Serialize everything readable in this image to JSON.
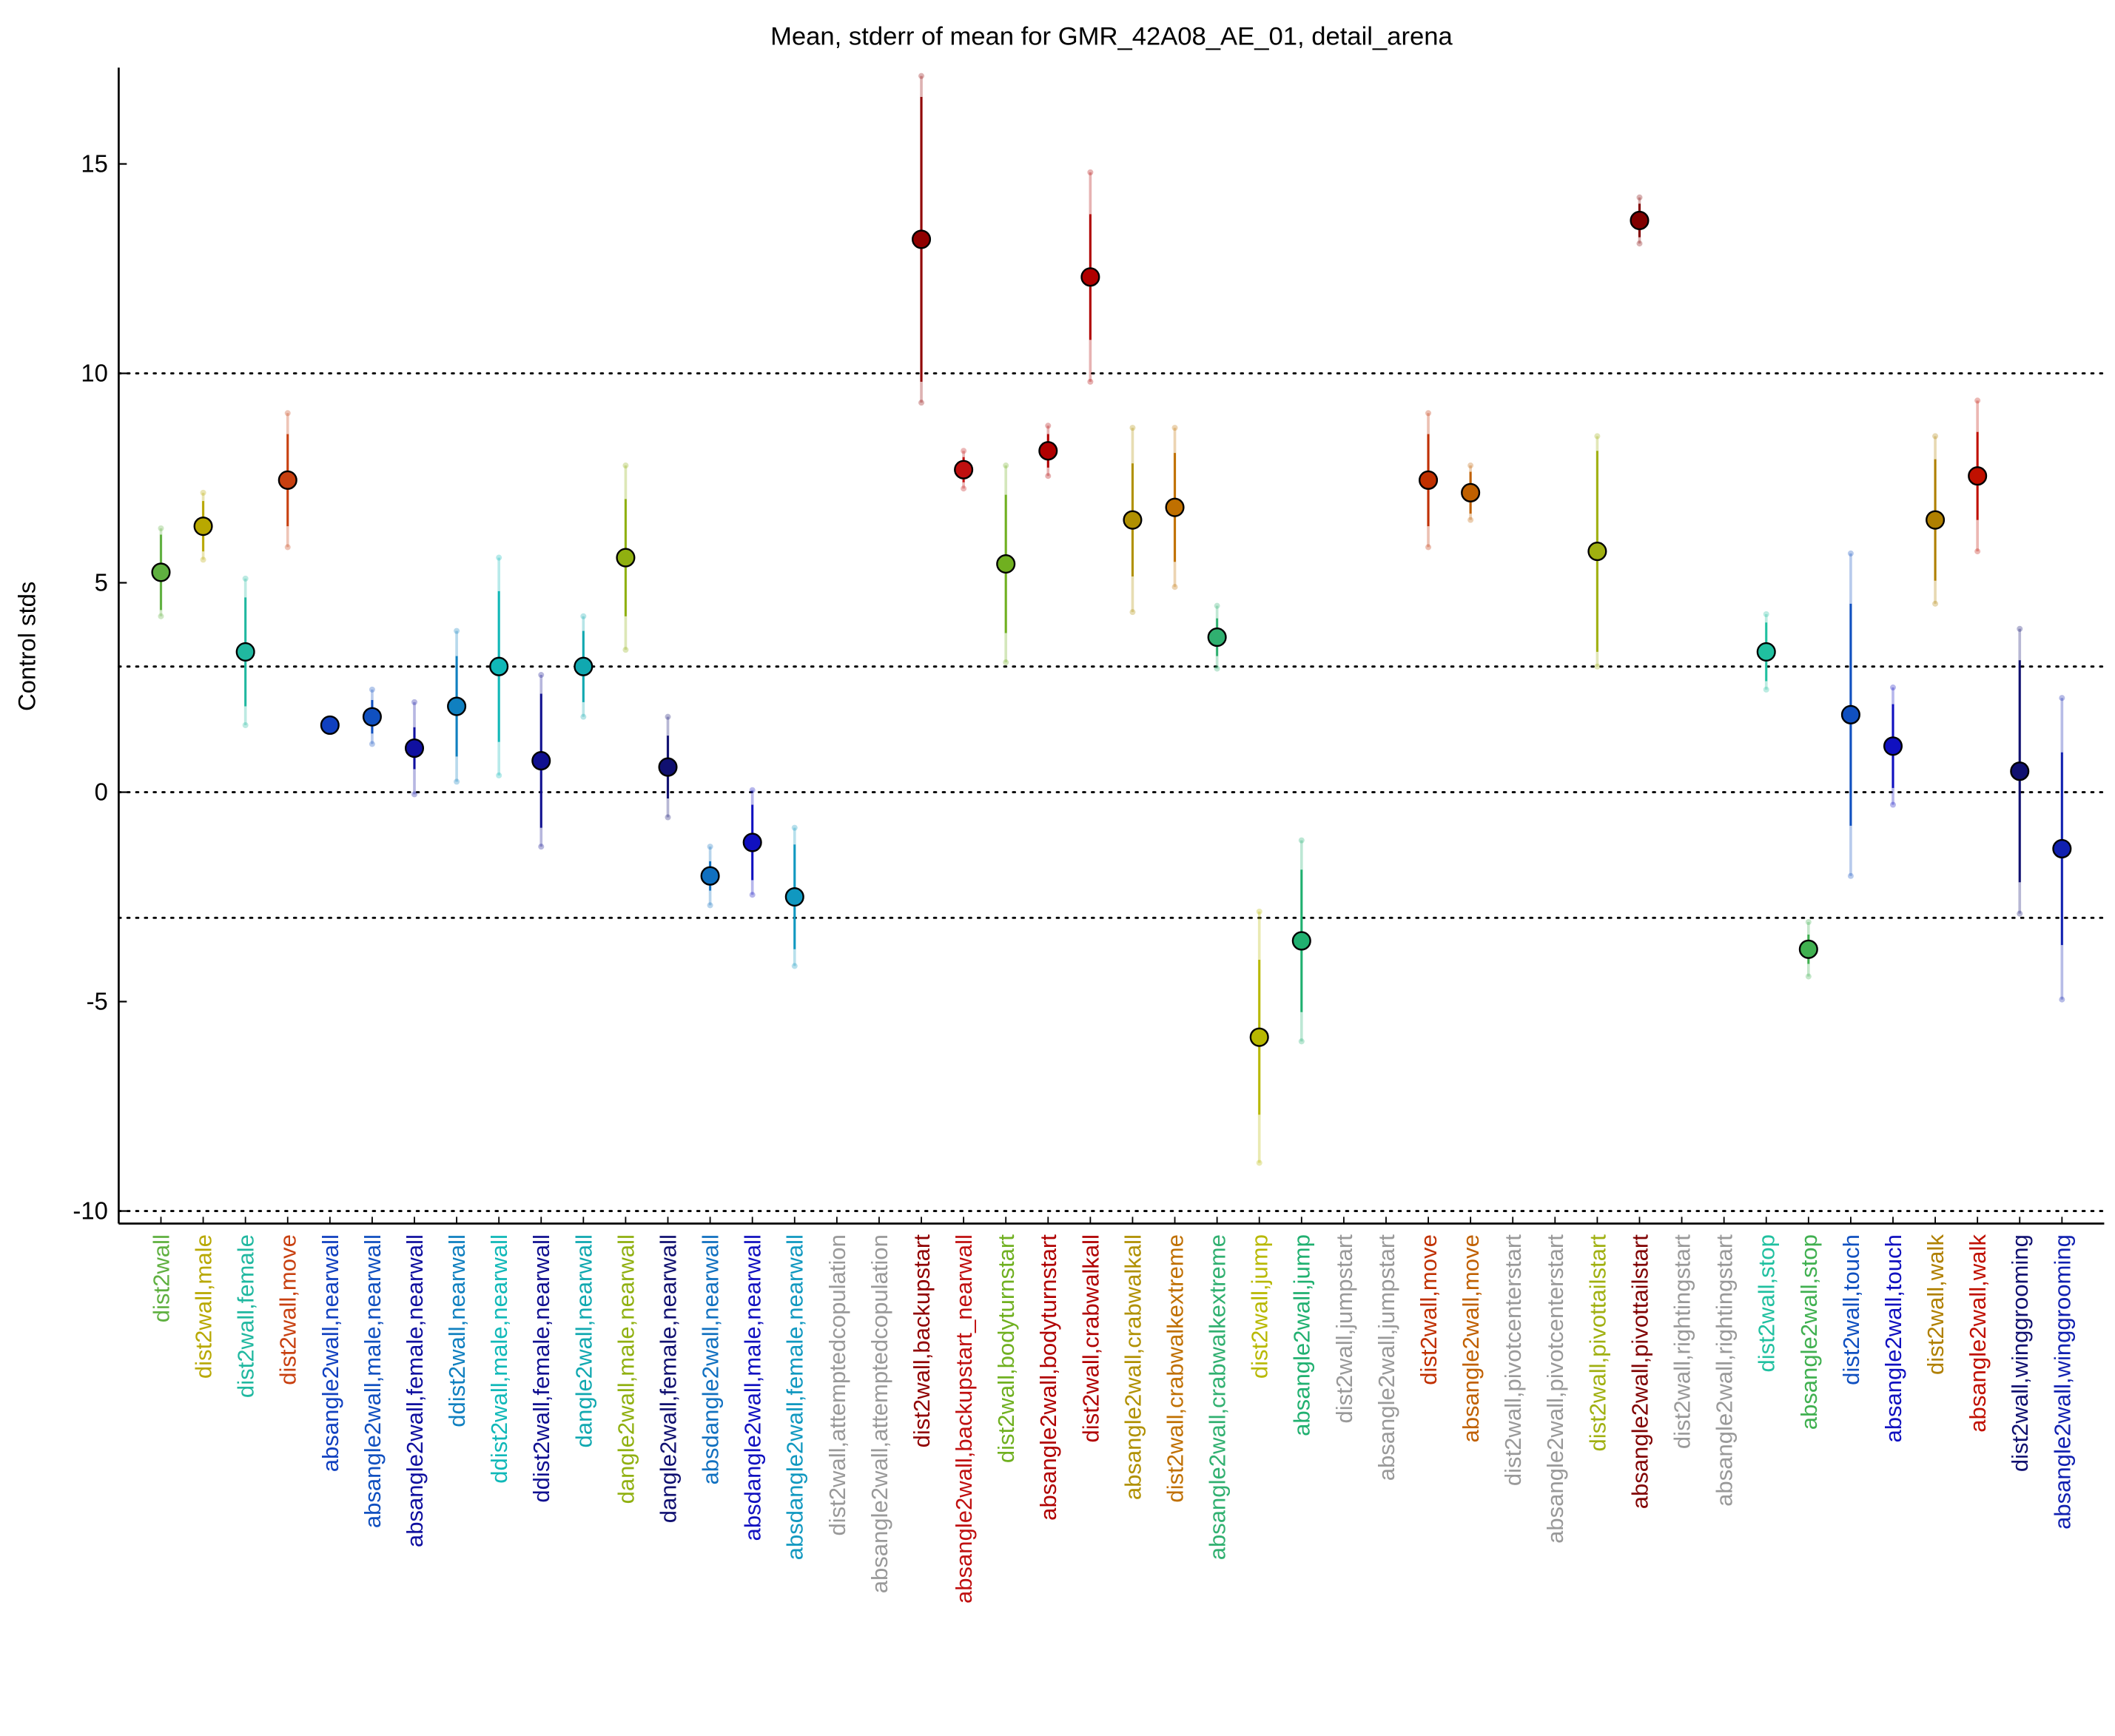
{
  "chart_data": {
    "type": "errorbar",
    "title": "Mean, stderr of mean for GMR_42A08_AE_01, detail_arena",
    "y_label": "Control stds",
    "categories": [
      "dist2wall",
      "dist2wall,male",
      "dist2wall,female",
      "dist2wall,move",
      "absangle2wall,nearwall",
      "absangle2wall,male,nearwall",
      "absangle2wall,female,nearwall",
      "ddist2wall,nearwall",
      "ddist2wall,male,nearwall",
      "ddist2wall,female,nearwall",
      "dangle2wall,nearwall",
      "dangle2wall,male,nearwall",
      "dangle2wall,female,nearwall",
      "absdangle2wall,nearwall",
      "absdangle2wall,male,nearwall",
      "absdangle2wall,female,nearwall",
      "dist2wall,attemptedcopulation",
      "absangle2wall,attemptedcopulation",
      "dist2wall,backupstart",
      "absangle2wall,backupstart_nearwall",
      "dist2wall,bodyturnstart",
      "absangle2wall,bodyturnstart",
      "dist2wall,crabwalkall",
      "absangle2wall,crabwalkall",
      "dist2wall,crabwalkextreme",
      "absangle2wall,crabwalkextreme",
      "dist2wall,jump",
      "absangle2wall,jump",
      "dist2wall,jumpstart",
      "absangle2wall,jumpstart",
      "dist2wall,move",
      "absangle2wall,move",
      "dist2wall,pivotcenterstart",
      "absangle2wall,pivotcenterstart",
      "dist2wall,pivottailstart",
      "absangle2wall,pivottailstart",
      "dist2wall,rightingstart",
      "absangle2wall,rightingstart",
      "dist2wall,stop",
      "absangle2wall,stop",
      "dist2wall,touch",
      "absangle2wall,touch",
      "dist2wall,walk",
      "absangle2wall,walk",
      "dist2wall,winggrooming",
      "absangle2wall,winggrooming"
    ],
    "values": [
      5.25,
      6.35,
      3.35,
      7.45,
      1.6,
      1.8,
      1.05,
      2.05,
      3.0,
      0.75,
      3.0,
      5.6,
      0.6,
      -2.0,
      -1.2,
      -2.5,
      null,
      null,
      13.2,
      7.7,
      5.45,
      8.15,
      12.3,
      6.5,
      6.8,
      3.7,
      -5.85,
      -3.55,
      null,
      null,
      7.45,
      7.15,
      null,
      null,
      5.75,
      13.65,
      null,
      null,
      3.35,
      -3.75,
      1.85,
      1.1,
      6.5,
      7.55,
      0.5,
      -1.35
    ],
    "error": [
      0.9,
      0.6,
      1.3,
      1.1,
      0.1,
      0.4,
      0.5,
      1.2,
      1.8,
      1.6,
      0.85,
      1.4,
      0.75,
      0.35,
      0.9,
      1.25,
      null,
      null,
      3.4,
      0.3,
      1.65,
      0.4,
      1.5,
      1.35,
      1.3,
      0.45,
      1.85,
      1.7,
      null,
      null,
      1.1,
      0.5,
      null,
      null,
      2.4,
      0.4,
      null,
      null,
      0.7,
      0.35,
      2.65,
      1.0,
      1.45,
      1.05,
      2.65,
      2.3
    ],
    "spread": [
      1.05,
      0.8,
      1.75,
      1.6,
      0.1,
      0.65,
      1.1,
      1.8,
      2.6,
      2.05,
      1.2,
      2.2,
      1.2,
      0.7,
      1.25,
      1.65,
      null,
      null,
      3.9,
      0.45,
      2.35,
      0.6,
      2.5,
      2.2,
      1.9,
      0.75,
      3.0,
      2.4,
      null,
      null,
      1.6,
      0.65,
      null,
      null,
      2.75,
      0.55,
      null,
      null,
      0.9,
      0.65,
      3.85,
      1.4,
      2.0,
      1.8,
      3.4,
      3.6
    ],
    "colors": [
      "#5fb040",
      "#b8a800",
      "#20b8a0",
      "#c84010",
      "#1040c0",
      "#1050c0",
      "#1010a0",
      "#1080c0",
      "#10b8b8",
      "#101090",
      "#10a8b0",
      "#90b010",
      "#101070",
      "#1070c0",
      "#1010c0",
      "#1098c0",
      "#999999",
      "#999999",
      "#900000",
      "#c01010",
      "#70b020",
      "#b00000",
      "#b00000",
      "#b09000",
      "#c07000",
      "#30b070",
      "#b8b800",
      "#20b070",
      "#999999",
      "#999999",
      "#c03000",
      "#c06000",
      "#999999",
      "#999999",
      "#a0b010",
      "#800000",
      "#999999",
      "#999999",
      "#20c0a0",
      "#40b050",
      "#1050c0",
      "#1010c0",
      "#b08000",
      "#c01000",
      "#101070",
      "#1020b0"
    ],
    "ylim": [
      -10.3,
      17.3
    ],
    "yticks": [
      -10,
      -5,
      0,
      5,
      10,
      15
    ],
    "hlines": [
      10,
      3,
      0,
      -3,
      -10
    ]
  }
}
